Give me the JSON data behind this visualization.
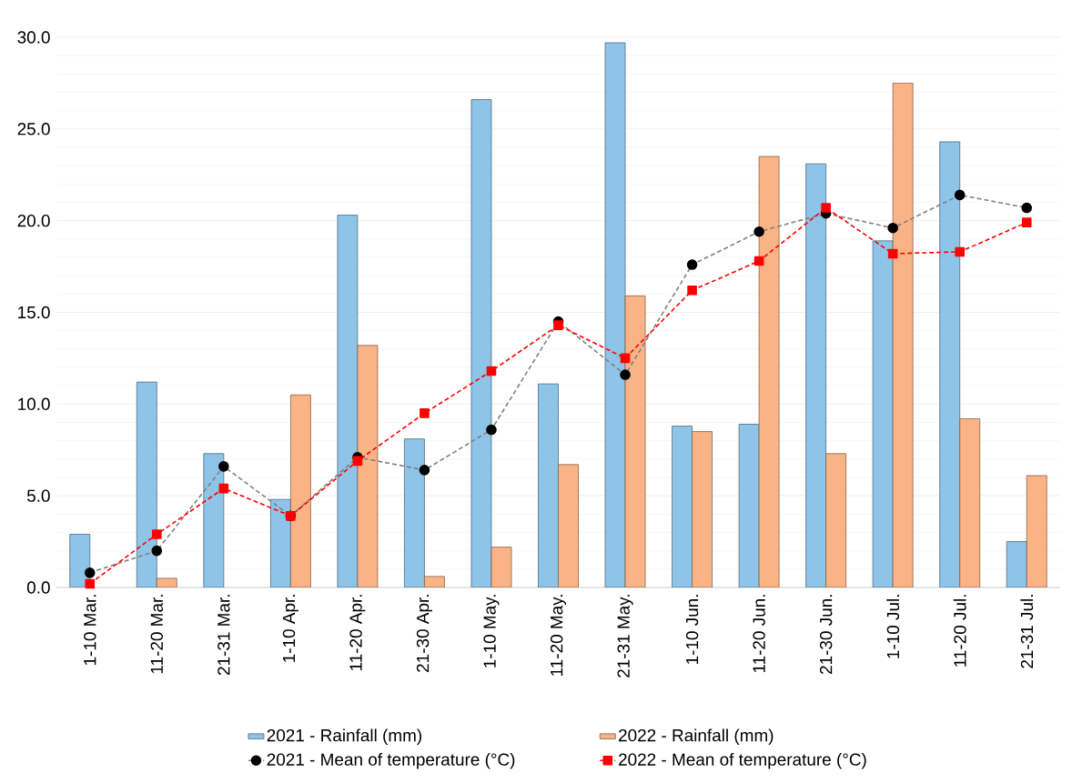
{
  "chart_data": {
    "type": "bar",
    "categories": [
      "1-10 Mar.",
      "11-20 Mar.",
      "21-31 Mar.",
      "1-10 Apr.",
      "11-20 Apr.",
      "21-30 Apr.",
      "1-10 May.",
      "11-20 May.",
      "21-31 May.",
      "1-10 Jun.",
      "11-20 Jun.",
      "21-30 Jun.",
      "1-10 Jul.",
      "11-20 Jul.",
      "21-31 Jul."
    ],
    "series": [
      {
        "name": "2021 - Rainfall (mm)",
        "color": "#8dc4e8",
        "values": [
          2.9,
          11.2,
          7.3,
          4.8,
          20.3,
          8.1,
          26.6,
          11.1,
          29.7,
          8.8,
          8.9,
          23.1,
          18.9,
          24.3,
          2.5
        ]
      },
      {
        "name": "2022 - Rainfall (mm)",
        "color": "#f9b385",
        "values": [
          null,
          0.5,
          null,
          10.5,
          13.2,
          0.6,
          2.2,
          6.7,
          15.9,
          8.5,
          23.5,
          7.3,
          27.5,
          9.2,
          6.1
        ]
      },
      {
        "name": "2021 - Mean of temperature (°C)",
        "type": "line",
        "color": "#808080",
        "marker": "circle",
        "line_style": "dashed",
        "values": [
          0.8,
          2.0,
          6.6,
          3.9,
          7.1,
          6.4,
          8.6,
          14.5,
          11.6,
          17.6,
          19.4,
          20.4,
          19.6,
          21.4,
          20.7
        ]
      },
      {
        "name": "2022 - Mean of temperature (°C)",
        "type": "line",
        "color": "#ff0000",
        "marker": "square",
        "line_style": "dashed",
        "values": [
          0.2,
          2.9,
          5.4,
          3.9,
          6.9,
          9.5,
          11.8,
          14.3,
          12.5,
          16.2,
          17.8,
          20.7,
          18.2,
          18.3,
          19.9
        ]
      }
    ],
    "ylim": [
      0,
      30
    ],
    "yticks": [
      {
        "value": 0,
        "label": "0.0"
      },
      {
        "value": 5,
        "label": "5.0"
      },
      {
        "value": 10,
        "label": "10.0"
      },
      {
        "value": 15,
        "label": "15.0"
      },
      {
        "value": 20,
        "label": "20.0"
      },
      {
        "value": 25,
        "label": "25.0"
      },
      {
        "value": 30,
        "label": "30.0"
      }
    ],
    "grid": "y",
    "legend": "bottom"
  }
}
